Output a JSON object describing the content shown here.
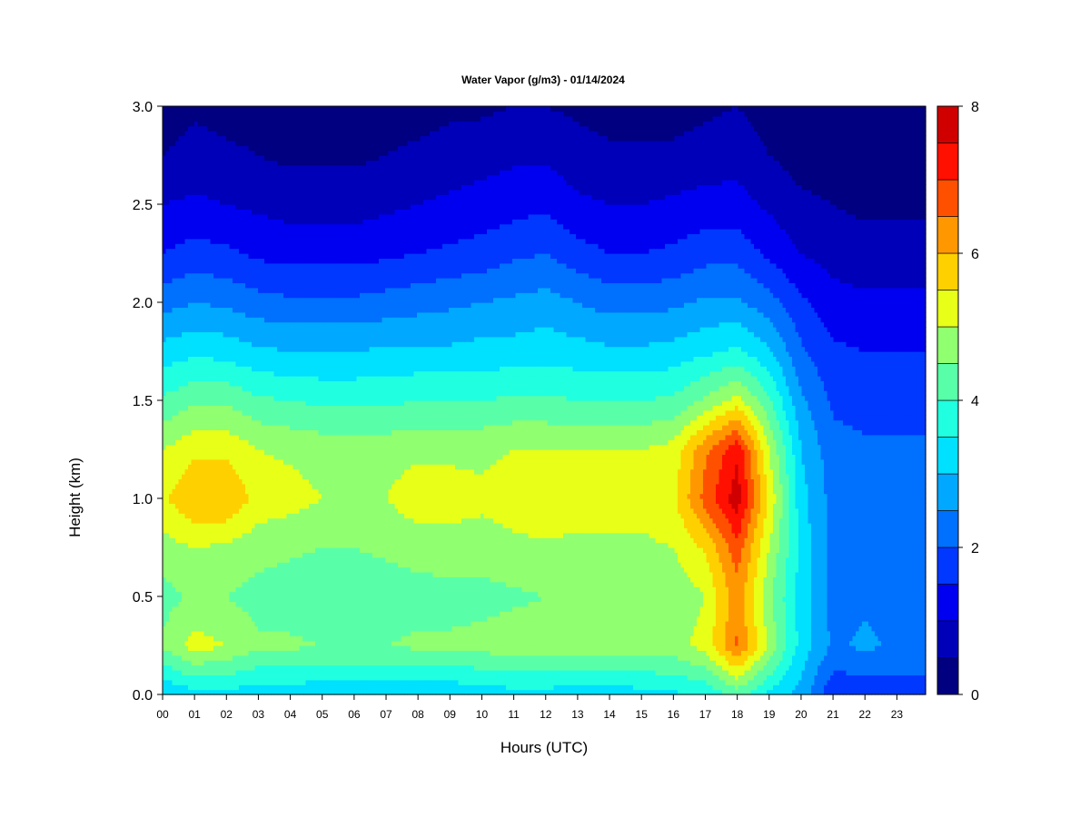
{
  "chart_data": {
    "type": "heatmap",
    "title": "Water Vapor (g/m3) - 01/14/2024",
    "xlabel": "Hours (UTC)",
    "ylabel": "Height (km)",
    "xlim": [
      0,
      23.9
    ],
    "ylim": [
      0.0,
      3.0
    ],
    "x_ticks": [
      "00",
      "01",
      "02",
      "03",
      "04",
      "05",
      "06",
      "07",
      "08",
      "09",
      "10",
      "11",
      "12",
      "13",
      "14",
      "15",
      "16",
      "17",
      "18",
      "19",
      "20",
      "21",
      "22",
      "23"
    ],
    "y_ticks": [
      "0.0",
      "0.5",
      "1.0",
      "1.5",
      "2.0",
      "2.5",
      "3.0"
    ],
    "colorbar": {
      "range": [
        0,
        8
      ],
      "ticks": [
        "0",
        "2",
        "4",
        "6",
        "8"
      ],
      "levels": [
        0,
        0.5,
        1,
        1.5,
        2,
        2.5,
        3,
        3.5,
        4,
        4.5,
        5,
        5.5,
        6,
        6.5,
        7,
        7.5,
        8
      ],
      "colors": [
        "#000080",
        "#0000b8",
        "#0000f0",
        "#0038ff",
        "#0070ff",
        "#00a8ff",
        "#00e0ff",
        "#20ffe0",
        "#58ffa8",
        "#90ff70",
        "#e8ff18",
        "#ffd000",
        "#ff9800",
        "#ff5000",
        "#ff1000",
        "#d00000",
        "#880000"
      ]
    },
    "grid": false,
    "hours": [
      0,
      1,
      2,
      3,
      4,
      5,
      6,
      7,
      8,
      9,
      10,
      11,
      12,
      13,
      14,
      15,
      16,
      17,
      18,
      19,
      20,
      21,
      22,
      23
    ],
    "heights_km": [
      0.0,
      0.25,
      0.5,
      0.75,
      1.0,
      1.25,
      1.5,
      1.75,
      2.0,
      2.25,
      2.5,
      2.75,
      3.0
    ],
    "values_gm3": [
      [
        3.0,
        3.3,
        3.3,
        3.2,
        3.2,
        3.1,
        3.1,
        3.1,
        3.1,
        3.1,
        3.2,
        3.3,
        3.3,
        3.2,
        3.2,
        3.3,
        3.4,
        3.6,
        4.2,
        3.4,
        2.8,
        1.6,
        1.6,
        1.7
      ],
      [
        4.6,
        5.2,
        5.0,
        4.6,
        4.6,
        4.5,
        4.5,
        4.5,
        4.6,
        4.6,
        4.7,
        4.8,
        4.8,
        4.8,
        4.8,
        4.8,
        4.8,
        5.2,
        6.6,
        4.9,
        3.3,
        2.4,
        2.6,
        2.4
      ],
      [
        4.3,
        4.6,
        4.5,
        4.3,
        4.2,
        4.1,
        4.1,
        4.2,
        4.3,
        4.3,
        4.3,
        4.4,
        4.5,
        4.5,
        4.5,
        4.5,
        4.6,
        5.0,
        6.3,
        4.6,
        3.3,
        2.3,
        2.4,
        2.3
      ],
      [
        4.8,
        5.0,
        4.9,
        4.7,
        4.6,
        4.5,
        4.5,
        4.6,
        4.7,
        4.8,
        4.8,
        4.9,
        4.9,
        4.9,
        4.9,
        4.9,
        5.0,
        5.6,
        6.8,
        5.0,
        3.3,
        2.3,
        2.3,
        2.3
      ],
      [
        5.4,
        6.0,
        6.0,
        5.3,
        5.2,
        5.0,
        5.0,
        5.0,
        5.3,
        5.2,
        5.1,
        5.2,
        5.4,
        5.2,
        5.3,
        5.2,
        5.4,
        6.7,
        7.8,
        5.4,
        3.2,
        2.3,
        2.2,
        2.2
      ],
      [
        5.0,
        5.4,
        5.4,
        5.0,
        4.9,
        4.8,
        4.8,
        4.8,
        4.9,
        4.9,
        4.9,
        5.0,
        5.0,
        5.0,
        5.0,
        5.0,
        5.2,
        6.4,
        7.4,
        5.0,
        3.0,
        2.2,
        2.1,
        2.1
      ],
      [
        4.1,
        4.4,
        4.4,
        4.1,
        4.0,
        3.9,
        3.9,
        3.9,
        4.0,
        4.0,
        4.0,
        4.1,
        4.1,
        4.0,
        4.0,
        4.0,
        4.1,
        4.6,
        5.2,
        4.1,
        2.6,
        1.9,
        1.8,
        1.8
      ],
      [
        3.2,
        3.4,
        3.3,
        3.1,
        3.0,
        3.0,
        3.0,
        3.1,
        3.1,
        3.1,
        3.2,
        3.2,
        3.3,
        3.2,
        3.1,
        3.1,
        3.2,
        3.4,
        3.6,
        3.1,
        2.1,
        1.6,
        1.5,
        1.5
      ],
      [
        2.3,
        2.5,
        2.4,
        2.2,
        2.1,
        2.1,
        2.1,
        2.2,
        2.3,
        2.4,
        2.5,
        2.6,
        2.7,
        2.5,
        2.3,
        2.3,
        2.4,
        2.6,
        2.6,
        2.2,
        1.6,
        1.2,
        1.1,
        1.1
      ],
      [
        1.5,
        1.7,
        1.6,
        1.4,
        1.3,
        1.3,
        1.3,
        1.4,
        1.5,
        1.6,
        1.7,
        1.9,
        2.0,
        1.7,
        1.5,
        1.5,
        1.6,
        1.8,
        1.8,
        1.4,
        1.0,
        0.8,
        0.7,
        0.7
      ],
      [
        1.0,
        1.1,
        1.0,
        0.9,
        0.8,
        0.8,
        0.8,
        0.9,
        1.0,
        1.1,
        1.2,
        1.3,
        1.4,
        1.1,
        1.0,
        1.0,
        1.1,
        1.2,
        1.2,
        0.9,
        0.6,
        0.5,
        0.4,
        0.4
      ],
      [
        0.5,
        0.7,
        0.6,
        0.5,
        0.4,
        0.4,
        0.4,
        0.5,
        0.6,
        0.7,
        0.8,
        0.9,
        0.9,
        0.7,
        0.6,
        0.6,
        0.6,
        0.7,
        0.8,
        0.5,
        0.3,
        0.3,
        0.3,
        0.3
      ],
      [
        0.2,
        0.4,
        0.3,
        0.3,
        0.2,
        0.2,
        0.2,
        0.3,
        0.3,
        0.4,
        0.4,
        0.5,
        0.5,
        0.4,
        0.3,
        0.3,
        0.3,
        0.4,
        0.5,
        0.3,
        0.2,
        0.2,
        0.2,
        0.2
      ]
    ]
  }
}
